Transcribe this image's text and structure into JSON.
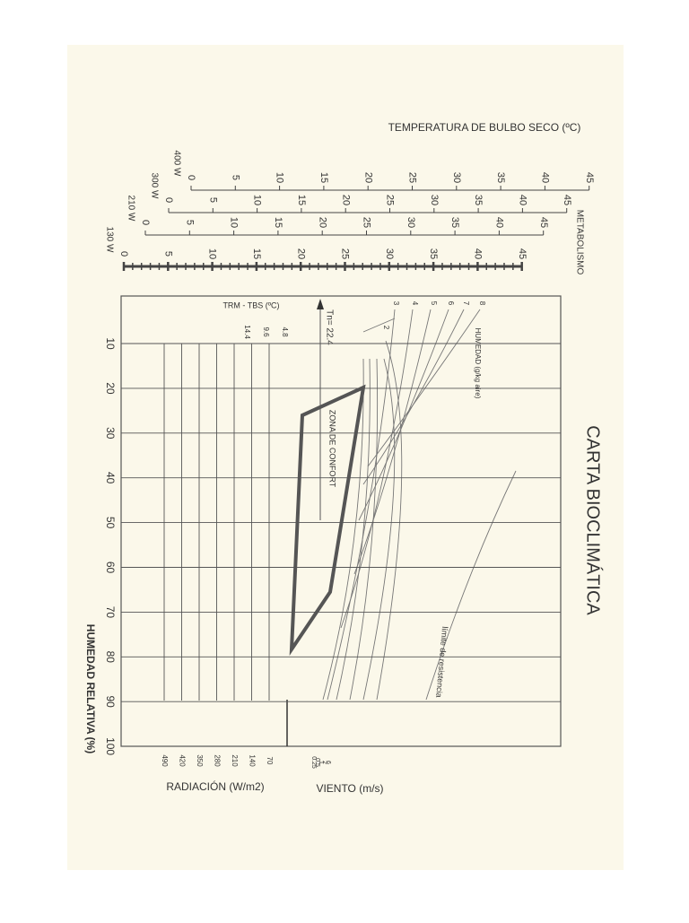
{
  "title": "CARTA BIOCLIMÁTICA",
  "temperature_axis": {
    "title": "TEMPERATURA DE BULBO SECO (ºC)",
    "side_label": "METABOLISMO",
    "scales": [
      {
        "label": "400 W",
        "ticks": [
          "0",
          "5",
          "10",
          "15",
          "20",
          "25",
          "30",
          "35",
          "40",
          "45"
        ]
      },
      {
        "label": "300 W",
        "ticks": [
          "0",
          "5",
          "10",
          "15",
          "20",
          "25",
          "30",
          "35",
          "40",
          "45"
        ]
      },
      {
        "label": "210 W",
        "ticks": [
          "0",
          "5",
          "10",
          "15",
          "20",
          "25",
          "30",
          "35",
          "40",
          "45"
        ]
      },
      {
        "label": "130 W",
        "ticks": [
          "0",
          "5",
          "10",
          "15",
          "20",
          "25",
          "30",
          "35",
          "40",
          "45"
        ]
      }
    ]
  },
  "trm": {
    "title": "TRM - TBS (ºC)",
    "labels": [
      "4.8",
      "9.6",
      "14.4"
    ]
  },
  "neutral_temperature": "Tn= 22.4",
  "humidity_curves": {
    "title": "HUMEDAD (g/kg aire)",
    "labels": [
      "2",
      "3",
      "4",
      "5",
      "6",
      "7",
      "8"
    ]
  },
  "comfort_zone": "ZONA DE CONFORT",
  "resistance_limit": "límite de resistencia",
  "relative_humidity": {
    "title": "HUMEDAD RELATIVA (%)",
    "ticks": [
      "10",
      "20",
      "30",
      "40",
      "50",
      "60",
      "70",
      "80",
      "90",
      "100"
    ]
  },
  "radiation": {
    "title": "RADIACIÓN (W/m2)",
    "ticks": [
      "70",
      "140",
      "210",
      "280",
      "350",
      "420",
      "490"
    ]
  },
  "wind": {
    "title": "VIENTO (m/s)",
    "ticks": [
      "6",
      "2",
      "1",
      "0.5",
      "0.25"
    ]
  }
}
